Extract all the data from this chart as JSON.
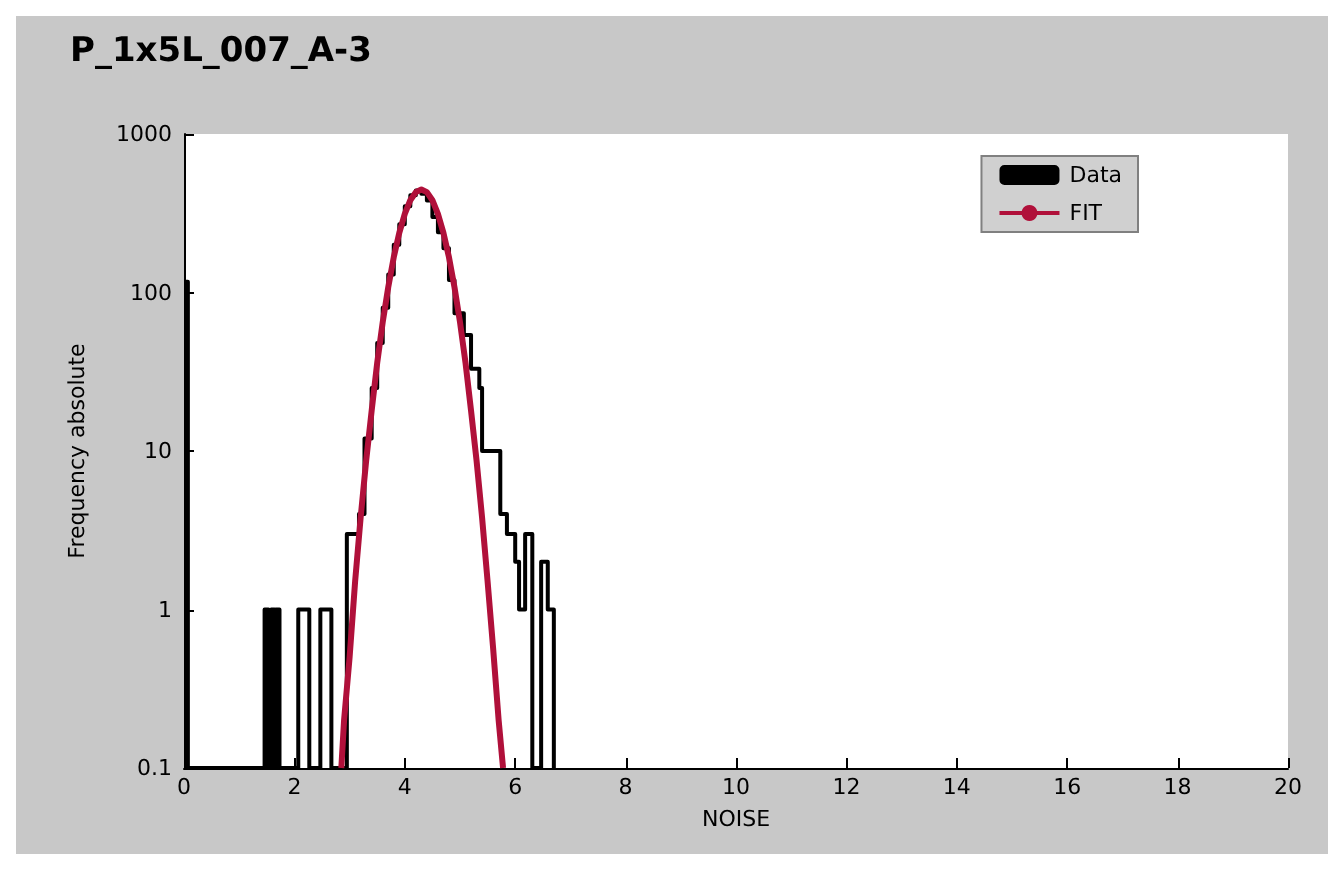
{
  "chart_data": {
    "type": "histogram",
    "title": "P_1x5L_007_A-3",
    "xlabel": "NOISE",
    "ylabel": "Frequency absolute",
    "xlim": [
      0,
      20
    ],
    "xticks": [
      0,
      2,
      4,
      6,
      8,
      10,
      12,
      14,
      16,
      18,
      20
    ],
    "ylim": [
      0.1,
      1000
    ],
    "yticks": [
      0.1,
      1,
      10,
      100,
      1000
    ],
    "log": "y",
    "grid": false,
    "legend": "top right",
    "series": [
      {
        "name": "Data",
        "color": "#000000",
        "bins": [
          0,
          0.07,
          1.46,
          1.53,
          1.58,
          1.64,
          1.67,
          1.73,
          2.07,
          2.27,
          2.47,
          2.67,
          2.95,
          3.17,
          3.27,
          3.4,
          3.5,
          3.6,
          3.7,
          3.8,
          3.9,
          4.0,
          4.1,
          4.2,
          4.3,
          4.4,
          4.5,
          4.6,
          4.7,
          4.8,
          4.9,
          5.07,
          5.2,
          5.35,
          5.4,
          5.73,
          5.85,
          6.0,
          6.07,
          6.18,
          6.31,
          6.47,
          6.59,
          6.7
        ],
        "values": [
          117,
          null,
          1,
          null,
          1,
          null,
          1,
          null,
          1,
          null,
          1,
          null,
          3,
          4,
          12,
          25,
          48,
          80,
          130,
          200,
          270,
          350,
          410,
          440,
          420,
          380,
          300,
          240,
          190,
          120,
          74,
          54,
          33,
          25,
          10,
          4,
          3,
          2,
          1,
          3,
          null,
          2,
          1
        ]
      },
      {
        "name": "FIT",
        "type": "line",
        "color": "#b0103a",
        "x": [
          2.85,
          2.9,
          3.0,
          3.1,
          3.2,
          3.3,
          3.4,
          3.5,
          3.6,
          3.7,
          3.8,
          3.9,
          4.0,
          4.1,
          4.2,
          4.3,
          4.4,
          4.5,
          4.6,
          4.7,
          4.8,
          4.9,
          5.0,
          5.1,
          5.2,
          5.3,
          5.4,
          5.5,
          5.6,
          5.7,
          5.78
        ],
        "values": [
          0.1,
          0.2,
          0.5,
          1.5,
          3.8,
          8.7,
          18,
          36,
          65,
          108,
          167,
          238,
          313,
          382,
          430,
          447,
          430,
          382,
          313,
          238,
          167,
          108,
          65,
          36,
          18,
          8.7,
          3.8,
          1.5,
          0.57,
          0.2,
          0.1
        ]
      }
    ]
  }
}
